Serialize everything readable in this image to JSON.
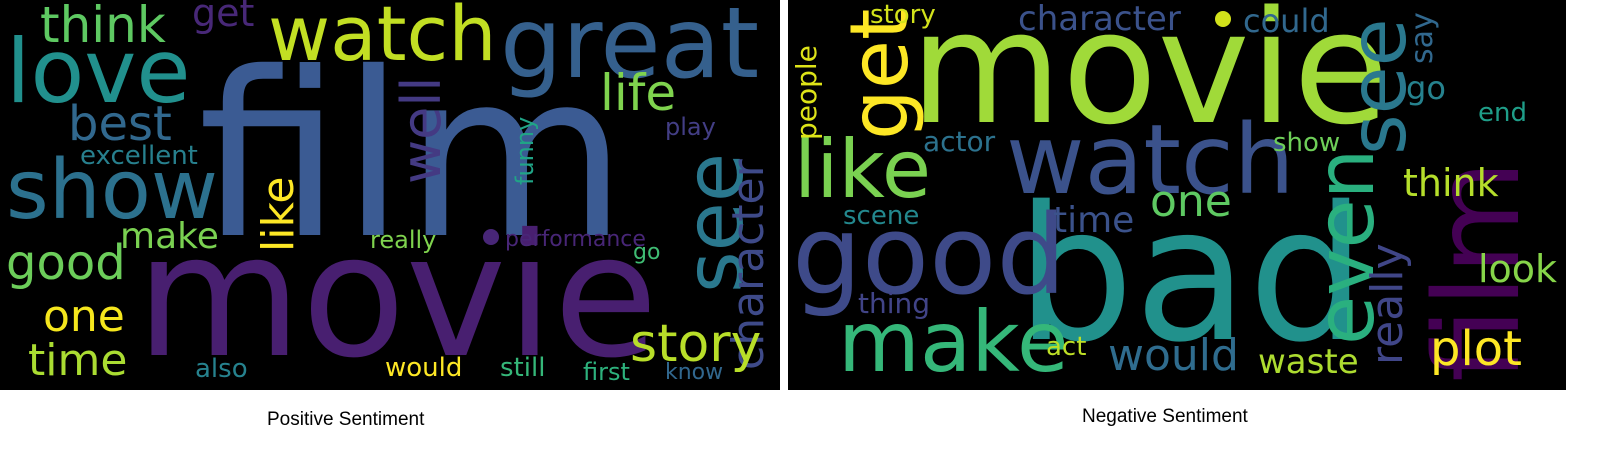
{
  "clouds": [
    {
      "id": "positive",
      "caption": "Positive Sentiment",
      "words": [
        {
          "text": "film",
          "color": "#3b5b93"
        },
        {
          "text": "movie",
          "color": "#481f70"
        },
        {
          "text": "great",
          "color": "#35608d"
        },
        {
          "text": "love",
          "color": "#21908d"
        },
        {
          "text": "watch",
          "color": "#c2df23"
        },
        {
          "text": "show",
          "color": "#2c718e"
        },
        {
          "text": "see",
          "color": "#2a788e"
        },
        {
          "text": "think",
          "color": "#5ec962"
        },
        {
          "text": "get",
          "color": "#482878"
        },
        {
          "text": "best",
          "color": "#31688e"
        },
        {
          "text": "excellent",
          "color": "#27808e"
        },
        {
          "text": "life",
          "color": "#7fd34e"
        },
        {
          "text": "well",
          "color": "#443a83"
        },
        {
          "text": "like",
          "color": "#fde725"
        },
        {
          "text": "make",
          "color": "#7ad151"
        },
        {
          "text": "good",
          "color": "#6ccd5a"
        },
        {
          "text": "one",
          "color": "#f5e61d"
        },
        {
          "text": "time",
          "color": "#aadc32"
        },
        {
          "text": "character",
          "color": "#3e4a89"
        },
        {
          "text": "story",
          "color": "#b8de29"
        },
        {
          "text": "play",
          "color": "#433e85"
        },
        {
          "text": "funny",
          "color": "#20a486"
        },
        {
          "text": "really",
          "color": "#7fd34e"
        },
        {
          "text": "performance",
          "color": "#482677"
        },
        {
          "text": "go",
          "color": "#3fbc73"
        },
        {
          "text": "also",
          "color": "#26828e"
        },
        {
          "text": "would",
          "color": "#fde725"
        },
        {
          "text": "still",
          "color": "#35b779"
        },
        {
          "text": "first",
          "color": "#2db27d"
        },
        {
          "text": "know",
          "color": "#31678e"
        }
      ]
    },
    {
      "id": "negative",
      "caption": "Negative Sentiment",
      "words": [
        {
          "text": "movie",
          "color": "#a0da39"
        },
        {
          "text": "bad",
          "color": "#21918c"
        },
        {
          "text": "film",
          "color": "#440154"
        },
        {
          "text": "watch",
          "color": "#3b528b"
        },
        {
          "text": "good",
          "color": "#3e4a89"
        },
        {
          "text": "like",
          "color": "#7ad151"
        },
        {
          "text": "get",
          "color": "#fde725"
        },
        {
          "text": "see",
          "color": "#2a788e"
        },
        {
          "text": "even",
          "color": "#2ab07f"
        },
        {
          "text": "make",
          "color": "#35b779"
        },
        {
          "text": "story",
          "color": "#d2e21b"
        },
        {
          "text": "character",
          "color": "#3b528b"
        },
        {
          "text": "could",
          "color": "#31688e"
        },
        {
          "text": "people",
          "color": "#dde318"
        },
        {
          "text": "say",
          "color": "#31688e"
        },
        {
          "text": "go",
          "color": "#26828e"
        },
        {
          "text": "end",
          "color": "#1f9e89"
        },
        {
          "text": "actor",
          "color": "#2c728e"
        },
        {
          "text": "show",
          "color": "#6ece58"
        },
        {
          "text": "one",
          "color": "#5ec962"
        },
        {
          "text": "think",
          "color": "#b5de2b"
        },
        {
          "text": "scene",
          "color": "#23888e"
        },
        {
          "text": "time",
          "color": "#3b528b"
        },
        {
          "text": "really",
          "color": "#404688"
        },
        {
          "text": "look",
          "color": "#86d549"
        },
        {
          "text": "thing",
          "color": "#414487"
        },
        {
          "text": "act",
          "color": "#bddf26"
        },
        {
          "text": "would",
          "color": "#2f6c8e"
        },
        {
          "text": "waste",
          "color": "#addc30"
        },
        {
          "text": "plot",
          "color": "#fde725"
        }
      ]
    }
  ]
}
